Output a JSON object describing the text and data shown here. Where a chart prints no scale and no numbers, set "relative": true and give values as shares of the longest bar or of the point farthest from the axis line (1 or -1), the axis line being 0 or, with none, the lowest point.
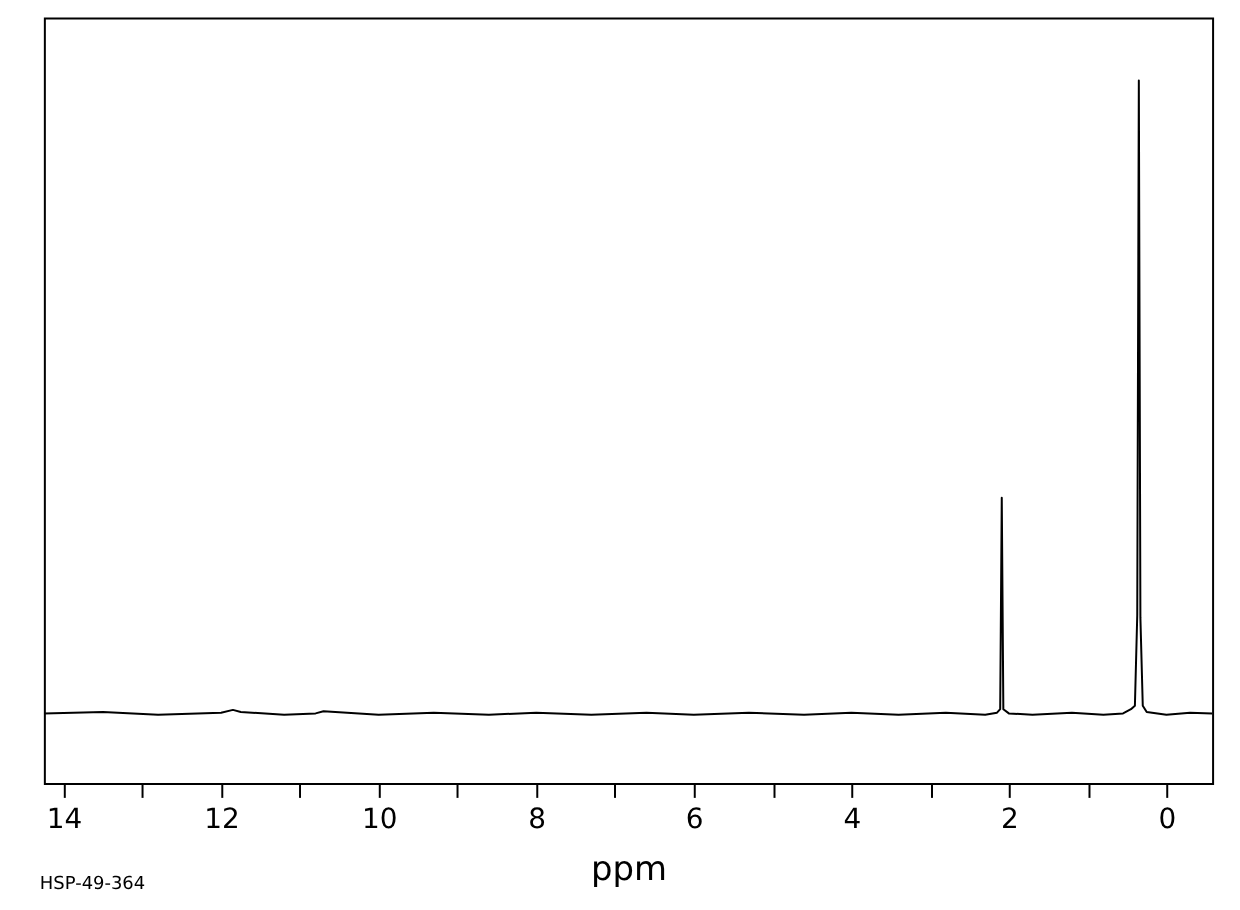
{
  "chart_data": {
    "type": "line",
    "relative": true,
    "xlabel": "ppm",
    "annotations": [
      "HSP-49-364"
    ],
    "xlim": [
      14.25,
      -0.58
    ],
    "xticks": [
      14,
      {
        "value": 13,
        "label": null
      },
      12,
      {
        "value": 11,
        "label": null
      },
      10,
      {
        "value": 9,
        "label": null
      },
      8,
      {
        "value": 7,
        "label": null
      },
      6,
      {
        "value": 5,
        "label": null
      },
      4,
      {
        "value": 3,
        "label": null
      },
      2,
      {
        "value": 1,
        "label": null
      },
      0
    ],
    "x": [
      14.25,
      13.5,
      12.8,
      12.0,
      11.85,
      11.75,
      11.2,
      10.8,
      10.7,
      10.0,
      9.3,
      8.6,
      8.0,
      7.3,
      6.6,
      6.0,
      5.3,
      4.6,
      4.0,
      3.4,
      2.8,
      2.3,
      2.15,
      2.11,
      2.09,
      2.07,
      2.0,
      1.7,
      1.2,
      0.8,
      0.55,
      0.45,
      0.4,
      0.37,
      0.35,
      0.33,
      0.3,
      0.25,
      0.0,
      -0.3,
      -0.58
    ],
    "series": [
      {
        "color": "#000000",
        "values": [
          0.099,
          0.101,
          0.097,
          0.1,
          0.104,
          0.101,
          0.097,
          0.099,
          0.102,
          0.097,
          0.1,
          0.097,
          0.1,
          0.097,
          0.1,
          0.097,
          0.1,
          0.097,
          0.1,
          0.097,
          0.1,
          0.097,
          0.1,
          0.105,
          0.406,
          0.105,
          0.099,
          0.097,
          0.1,
          0.097,
          0.099,
          0.105,
          0.11,
          0.239,
          1.0,
          0.235,
          0.11,
          0.101,
          0.097,
          0.1,
          0.099
        ]
      }
    ],
    "grid": false,
    "legend": false,
    "marker": "none",
    "line_style": "solid"
  }
}
